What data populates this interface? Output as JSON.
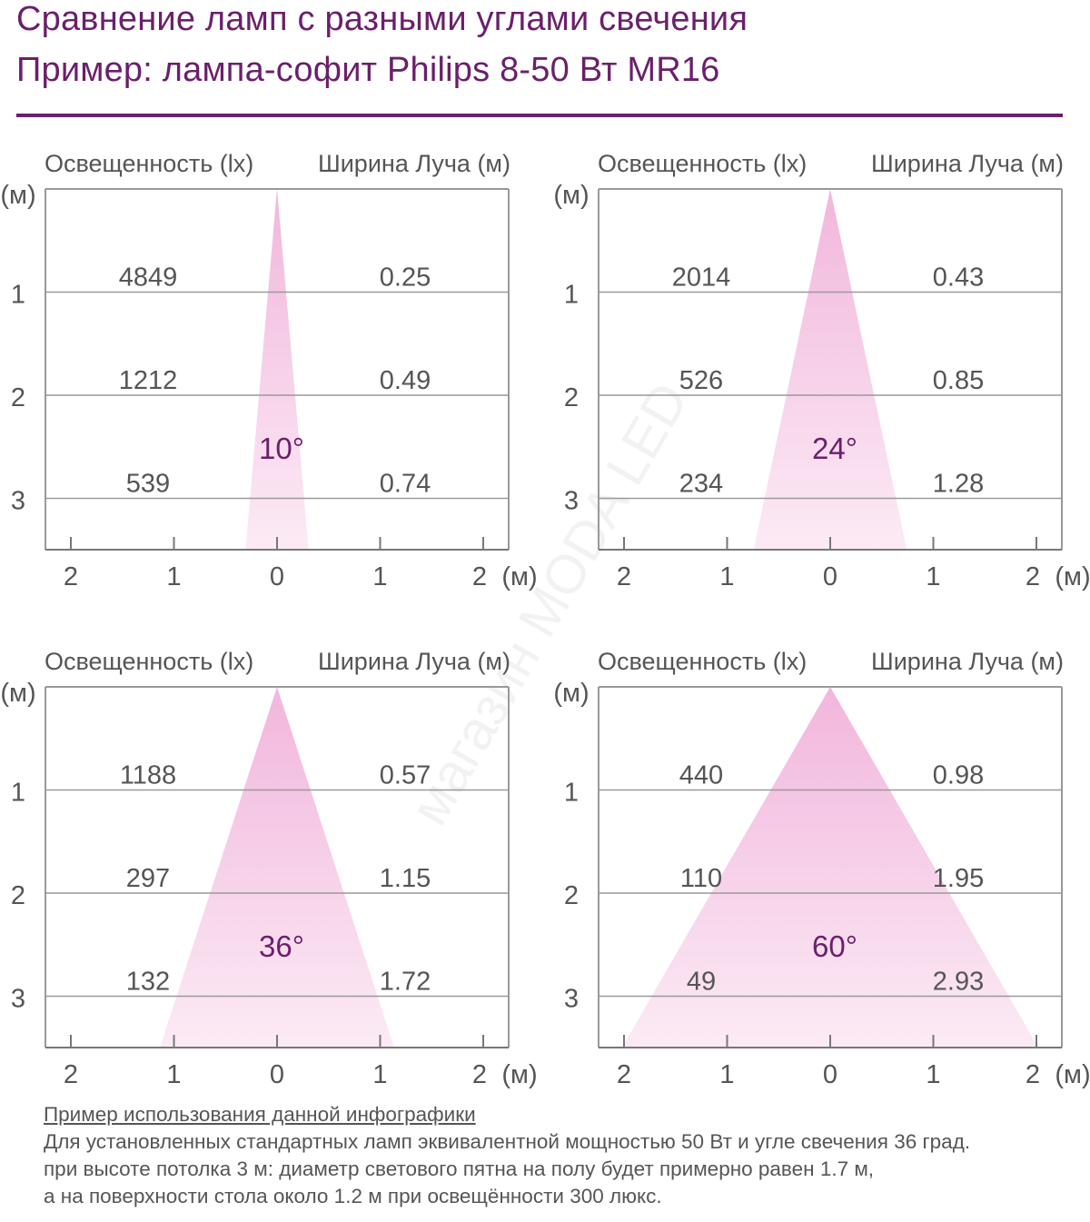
{
  "title_line1": "Сравнение ламп с разными углами свечения",
  "title_line2": "Пример: лампа-софит Philips 8-50 Вт MR16",
  "watermark": "магазин MODA LED",
  "colors": {
    "accent": "#6b1f6b",
    "beam": "#f2b6dc",
    "text": "#555555",
    "grid": "#999999"
  },
  "chart_data": [
    {
      "type": "area",
      "angle": 10,
      "angle_label": "10°",
      "col_left": "Освещенность (lx)",
      "col_right": "Ширина Луча (м)",
      "distance_m": [
        1,
        2,
        3
      ],
      "illuminance_lx": [
        "4849",
        "1212",
        "539"
      ],
      "beam_width_m": [
        "0.25",
        "0.49",
        "0.74"
      ],
      "y_unit": "(м)",
      "x_unit": "(м)",
      "y_ticks": [
        "1",
        "2",
        "3"
      ],
      "x_ticks": [
        "2",
        "1",
        "0",
        "1",
        "2"
      ]
    },
    {
      "type": "area",
      "angle": 24,
      "angle_label": "24°",
      "col_left": "Освещенность (lx)",
      "col_right": "Ширина Луча (м)",
      "distance_m": [
        1,
        2,
        3
      ],
      "illuminance_lx": [
        "2014",
        "526",
        "234"
      ],
      "beam_width_m": [
        "0.43",
        "0.85",
        "1.28"
      ],
      "y_unit": "(м)",
      "x_unit": "(м)",
      "y_ticks": [
        "1",
        "2",
        "3"
      ],
      "x_ticks": [
        "2",
        "1",
        "0",
        "1",
        "2"
      ]
    },
    {
      "type": "area",
      "angle": 36,
      "angle_label": "36°",
      "col_left": "Освещенность (lx)",
      "col_right": "Ширина Луча (м)",
      "distance_m": [
        1,
        2,
        3
      ],
      "illuminance_lx": [
        "1188",
        "297",
        "132"
      ],
      "beam_width_m": [
        "0.57",
        "1.15",
        "1.72"
      ],
      "y_unit": "(м)",
      "x_unit": "(м)",
      "y_ticks": [
        "1",
        "2",
        "3"
      ],
      "x_ticks": [
        "2",
        "1",
        "0",
        "1",
        "2"
      ]
    },
    {
      "type": "area",
      "angle": 60,
      "angle_label": "60°",
      "col_left": "Освещенность (lx)",
      "col_right": "Ширина Луча (м)",
      "distance_m": [
        1,
        2,
        3
      ],
      "illuminance_lx": [
        "440",
        "110",
        "49"
      ],
      "beam_width_m": [
        "0.98",
        "1.95",
        "2.93"
      ],
      "y_unit": "(м)",
      "x_unit": "(м)",
      "y_ticks": [
        "1",
        "2",
        "3"
      ],
      "x_ticks": [
        "2",
        "1",
        "0",
        "1",
        "2"
      ]
    }
  ],
  "footer": {
    "title": "Пример использования данной инфографики",
    "line1": "Для установленных стандартных ламп эквивалентной мощностью 50 Вт и угле свечения 36 град.",
    "line2": "при высоте потолка 3 м: диаметр светового пятна на полу будет примерно равен 1.7 м,",
    "line3": "а на поверхности стола около 1.2 м при освещённости 300 люкс."
  }
}
